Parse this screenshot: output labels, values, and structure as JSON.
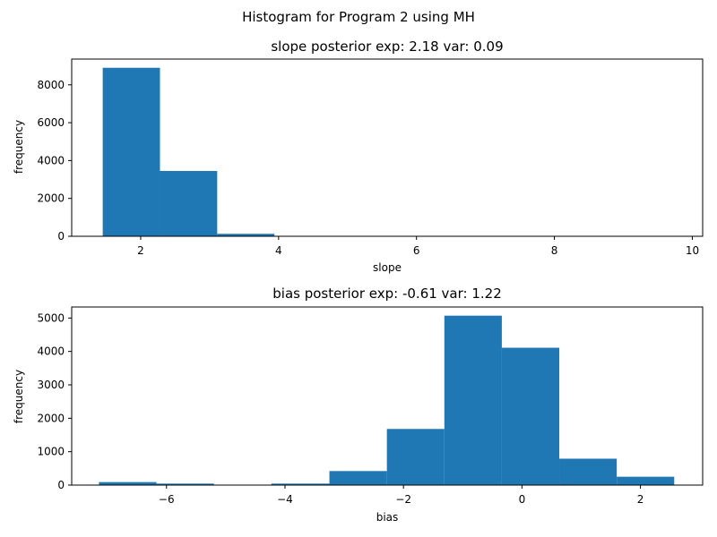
{
  "figure": {
    "suptitle": "Histogram for Program 2 using MH"
  },
  "colors": {
    "bar": "#1f77b4",
    "axis": "#000000",
    "background": "#ffffff"
  },
  "chart_data": [
    {
      "type": "bar",
      "title": "slope posterior exp: 2.18    var: 0.09",
      "xlabel": "slope",
      "ylabel": "frequency",
      "xlim": [
        1.0,
        10.15
      ],
      "ylim": [
        0,
        9360
      ],
      "xticks": [
        2,
        4,
        6,
        8,
        10
      ],
      "yticks": [
        0,
        2000,
        4000,
        6000,
        8000
      ],
      "bins": [
        {
          "x0": 1.45,
          "x1": 2.28,
          "count": 8900
        },
        {
          "x0": 2.28,
          "x1": 3.11,
          "count": 3450
        },
        {
          "x0": 3.11,
          "x1": 3.94,
          "count": 130
        },
        {
          "x0": 3.94,
          "x1": 4.77,
          "count": 10
        },
        {
          "x0": 4.77,
          "x1": 5.6,
          "count": 2
        },
        {
          "x0": 5.6,
          "x1": 6.43,
          "count": 1
        },
        {
          "x0": 6.43,
          "x1": 7.26,
          "count": 1
        },
        {
          "x0": 7.26,
          "x1": 8.09,
          "count": 0
        },
        {
          "x0": 8.09,
          "x1": 8.92,
          "count": 0
        },
        {
          "x0": 8.92,
          "x1": 9.75,
          "count": 1
        }
      ]
    },
    {
      "type": "bar",
      "title": "bias posterior exp: -0.61    var: 1.22",
      "xlabel": "bias",
      "ylabel": "frequency",
      "xlim": [
        -7.6,
        3.05
      ],
      "ylim": [
        0,
        5330
      ],
      "xticks": [
        -6,
        -4,
        -2,
        0,
        2
      ],
      "yticks": [
        0,
        1000,
        2000,
        3000,
        4000,
        5000
      ],
      "bins": [
        {
          "x0": -7.14,
          "x1": -6.17,
          "count": 90
        },
        {
          "x0": -6.17,
          "x1": -5.2,
          "count": 45
        },
        {
          "x0": -5.2,
          "x1": -4.23,
          "count": 5
        },
        {
          "x0": -4.23,
          "x1": -3.25,
          "count": 45
        },
        {
          "x0": -3.25,
          "x1": -2.28,
          "count": 420
        },
        {
          "x0": -2.28,
          "x1": -1.31,
          "count": 1680
        },
        {
          "x0": -1.31,
          "x1": -0.34,
          "count": 5070
        },
        {
          "x0": -0.34,
          "x1": 0.63,
          "count": 4110
        },
        {
          "x0": 0.63,
          "x1": 1.6,
          "count": 790
        },
        {
          "x0": 1.6,
          "x1": 2.57,
          "count": 250
        }
      ]
    }
  ]
}
